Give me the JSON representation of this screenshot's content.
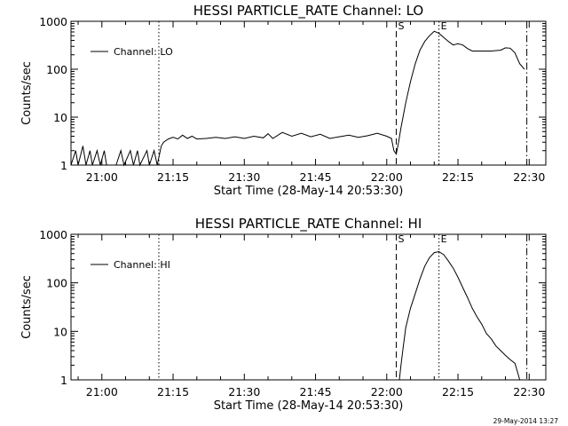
{
  "footer_timestamp": "29-May-2014 13:27",
  "chart_data": [
    {
      "type": "line",
      "title": "HESSI PARTICLE_RATE Channel: LO",
      "xlabel": "Start Time (28-May-14 20:53:30)",
      "ylabel": "Counts/sec",
      "y_scale": "log",
      "ylim": [
        1,
        1000
      ],
      "xlim": [
        "20:53:30",
        "22:33:30"
      ],
      "x_tick_labels": [
        "21:00",
        "21:15",
        "21:30",
        "21:45",
        "22:00",
        "22:15",
        "22:30"
      ],
      "y_tick_labels": [
        "1",
        "10",
        "100",
        "1000"
      ],
      "legend": {
        "label": "Channel: LO",
        "placement": "top-left"
      },
      "markers": [
        {
          "label": "",
          "time": "21:12:00",
          "style": "dotted"
        },
        {
          "label": "S",
          "time": "22:02:00",
          "style": "dashed"
        },
        {
          "label": "E",
          "time": "22:11:00",
          "style": "dotted"
        },
        {
          "label": "",
          "time": "22:29:30",
          "style": "dash-dot"
        }
      ],
      "series": [
        {
          "name": "Channel: LO",
          "points": [
            [
              "20:53:30",
              1
            ],
            [
              "20:54:30",
              2
            ],
            [
              "20:55:00",
              1
            ],
            [
              "20:56:00",
              2.5
            ],
            [
              "20:56:40",
              1
            ],
            [
              "20:57:30",
              2
            ],
            [
              "20:58:00",
              1
            ],
            [
              "20:59:00",
              2
            ],
            [
              "20:59:40",
              1
            ],
            [
              "21:00:30",
              2
            ],
            [
              "21:01:00",
              1
            ],
            [
              "21:03:00",
              1
            ],
            [
              "21:04:00",
              2
            ],
            [
              "21:04:40",
              1
            ],
            [
              "21:06:00",
              2
            ],
            [
              "21:06:40",
              1
            ],
            [
              "21:07:30",
              2
            ],
            [
              "21:08:00",
              1
            ],
            [
              "21:09:30",
              2
            ],
            [
              "21:10:00",
              1
            ],
            [
              "21:11:00",
              2
            ],
            [
              "21:11:40",
              1
            ],
            [
              "21:12:30",
              2.5
            ],
            [
              "21:13:00",
              3
            ],
            [
              "21:14:00",
              3.5
            ],
            [
              "21:15:00",
              3.8
            ],
            [
              "21:16:00",
              3.5
            ],
            [
              "21:17:00",
              4.2
            ],
            [
              "21:18:00",
              3.6
            ],
            [
              "21:19:00",
              4.0
            ],
            [
              "21:20:00",
              3.5
            ],
            [
              "21:22:00",
              3.6
            ],
            [
              "21:24:00",
              3.8
            ],
            [
              "21:26:00",
              3.6
            ],
            [
              "21:28:00",
              3.9
            ],
            [
              "21:30:00",
              3.6
            ],
            [
              "21:32:00",
              4.0
            ],
            [
              "21:34:00",
              3.7
            ],
            [
              "21:35:00",
              4.5
            ],
            [
              "21:36:00",
              3.6
            ],
            [
              "21:38:00",
              4.8
            ],
            [
              "21:40:00",
              4.0
            ],
            [
              "21:42:00",
              4.6
            ],
            [
              "21:44:00",
              3.9
            ],
            [
              "21:46:00",
              4.4
            ],
            [
              "21:48:00",
              3.6
            ],
            [
              "21:50:00",
              3.9
            ],
            [
              "21:52:00",
              4.2
            ],
            [
              "21:54:00",
              3.8
            ],
            [
              "21:56:00",
              4.1
            ],
            [
              "21:58:00",
              4.6
            ],
            [
              "22:00:00",
              4.0
            ],
            [
              "22:01:00",
              3.6
            ],
            [
              "22:01:30",
              2.0
            ],
            [
              "22:02:00",
              1.7
            ],
            [
              "22:02:30",
              3.0
            ],
            [
              "22:03:00",
              6
            ],
            [
              "22:04:00",
              20
            ],
            [
              "22:05:00",
              55
            ],
            [
              "22:06:00",
              130
            ],
            [
              "22:07:00",
              250
            ],
            [
              "22:08:00",
              380
            ],
            [
              "22:09:00",
              500
            ],
            [
              "22:10:00",
              620
            ],
            [
              "22:11:00",
              560
            ],
            [
              "22:12:00",
              460
            ],
            [
              "22:13:00",
              380
            ],
            [
              "22:14:00",
              320
            ],
            [
              "22:15:00",
              340
            ],
            [
              "22:16:00",
              320
            ],
            [
              "22:17:00",
              270
            ],
            [
              "22:18:00",
              240
            ],
            [
              "22:20:00",
              240
            ],
            [
              "22:22:00",
              240
            ],
            [
              "22:24:00",
              250
            ],
            [
              "22:25:00",
              280
            ],
            [
              "22:26:00",
              275
            ],
            [
              "22:27:00",
              220
            ],
            [
              "22:28:00",
              130
            ],
            [
              "22:29:00",
              100
            ]
          ]
        }
      ]
    },
    {
      "type": "line",
      "title": "HESSI PARTICLE_RATE Channel: HI",
      "xlabel": "Start Time (28-May-14 20:53:30)",
      "ylabel": "Counts/sec",
      "y_scale": "log",
      "ylim": [
        1,
        1000
      ],
      "xlim": [
        "20:53:30",
        "22:33:30"
      ],
      "x_tick_labels": [
        "21:00",
        "21:15",
        "21:30",
        "21:45",
        "22:00",
        "22:15",
        "22:30"
      ],
      "y_tick_labels": [
        "1",
        "10",
        "100",
        "1000"
      ],
      "legend": {
        "label": "Channel: HI",
        "placement": "top-left"
      },
      "markers": [
        {
          "label": "",
          "time": "21:12:00",
          "style": "dotted"
        },
        {
          "label": "S",
          "time": "22:02:00",
          "style": "dashed"
        },
        {
          "label": "E",
          "time": "22:11:00",
          "style": "dotted"
        },
        {
          "label": "",
          "time": "22:29:30",
          "style": "dash-dot"
        }
      ],
      "series": [
        {
          "name": "Channel: HI",
          "points": [
            [
              "22:02:40",
              1
            ],
            [
              "22:03:00",
              2
            ],
            [
              "22:03:30",
              5
            ],
            [
              "22:04:00",
              12
            ],
            [
              "22:05:00",
              30
            ],
            [
              "22:06:00",
              60
            ],
            [
              "22:07:00",
              120
            ],
            [
              "22:08:00",
              220
            ],
            [
              "22:09:00",
              330
            ],
            [
              "22:10:00",
              420
            ],
            [
              "22:11:00",
              440
            ],
            [
              "22:12:00",
              380
            ],
            [
              "22:13:00",
              280
            ],
            [
              "22:14:00",
              200
            ],
            [
              "22:15:00",
              130
            ],
            [
              "22:16:00",
              80
            ],
            [
              "22:17:00",
              50
            ],
            [
              "22:18:00",
              30
            ],
            [
              "22:19:00",
              20
            ],
            [
              "22:20:00",
              14
            ],
            [
              "22:21:00",
              9
            ],
            [
              "22:22:00",
              7
            ],
            [
              "22:23:00",
              5
            ],
            [
              "22:24:00",
              4
            ],
            [
              "22:25:00",
              3.2
            ],
            [
              "22:26:00",
              2.6
            ],
            [
              "22:27:00",
              2.2
            ],
            [
              "22:27:30",
              1.5
            ],
            [
              "22:28:00",
              1
            ]
          ]
        }
      ]
    }
  ]
}
